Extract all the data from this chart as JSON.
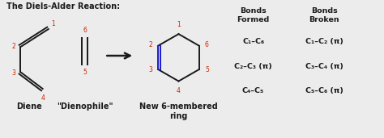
{
  "title": "The Diels-Alder Reaction:",
  "background_color": "#ececec",
  "diene_label": "Diene",
  "dienophile_label": "\"Dienophile\"",
  "product_label": "New 6-membered\nring",
  "bonds_formed_header": "Bonds\nFormed",
  "bonds_broken_header": "Bonds\nBroken",
  "bonds_formed": [
    "C₁–C₆",
    "C₂–C₃ (π)",
    "C₄–C₅"
  ],
  "bonds_broken": [
    "C₁–C₂ (π)",
    "C₃–C₄ (π)",
    "C₅–C₆ (π)"
  ],
  "red_color": "#cc2200",
  "black_color": "#1a1a1a",
  "blue_color": "#1a1acc",
  "arrow_color": "#1a1a1a",
  "figsize": [
    4.74,
    1.71
  ],
  "dpi": 100
}
